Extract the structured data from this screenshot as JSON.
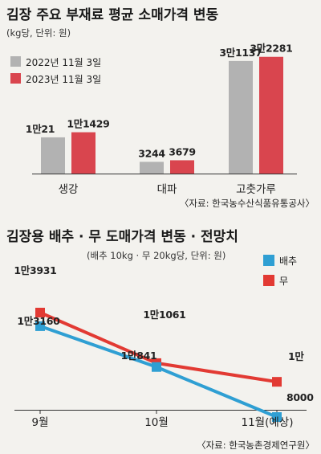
{
  "chart_data": [
    {
      "type": "bar",
      "title": "김장 주요 부재료 평균 소매가격 변동",
      "unit": "(kg당, 단위: 원)",
      "categories": [
        "생강",
        "대파",
        "고춧가루"
      ],
      "series": [
        {
          "name": "2022년 11월 3일",
          "color": "#b2b2b2",
          "values": [
            10021,
            3244,
            31137
          ],
          "labels": [
            "1만21",
            "3244",
            "3만1137"
          ]
        },
        {
          "name": "2023년 11월 3일",
          "color": "#d9454e",
          "values": [
            11429,
            3679,
            32281
          ],
          "labels": [
            "1만1429",
            "3679",
            "3만2281"
          ]
        }
      ],
      "ylim": [
        0,
        34000
      ],
      "source": "〈자료: 한국농수산식품유통공사〉"
    },
    {
      "type": "line",
      "title": "김장용 배추 · 무 도매가격 변동 · 전망치",
      "unit": "(배추 10kg · 무 20kg당, 단위: 원)",
      "categories": [
        "9월",
        "10월",
        "11월(예상)"
      ],
      "series": [
        {
          "name": "배추",
          "color": "#2f9fd3",
          "values": [
            13160,
            10841,
            8000
          ],
          "labels": [
            "1만3160",
            "1만841",
            "8000"
          ]
        },
        {
          "name": "무",
          "color": "#e23a33",
          "values": [
            13931,
            11061,
            10000
          ],
          "labels": [
            "1만3931",
            "1만1061",
            "1만"
          ]
        }
      ],
      "ylim": [
        7000,
        15000
      ],
      "source": "〈자료: 한국농촌경제연구원〉"
    }
  ]
}
